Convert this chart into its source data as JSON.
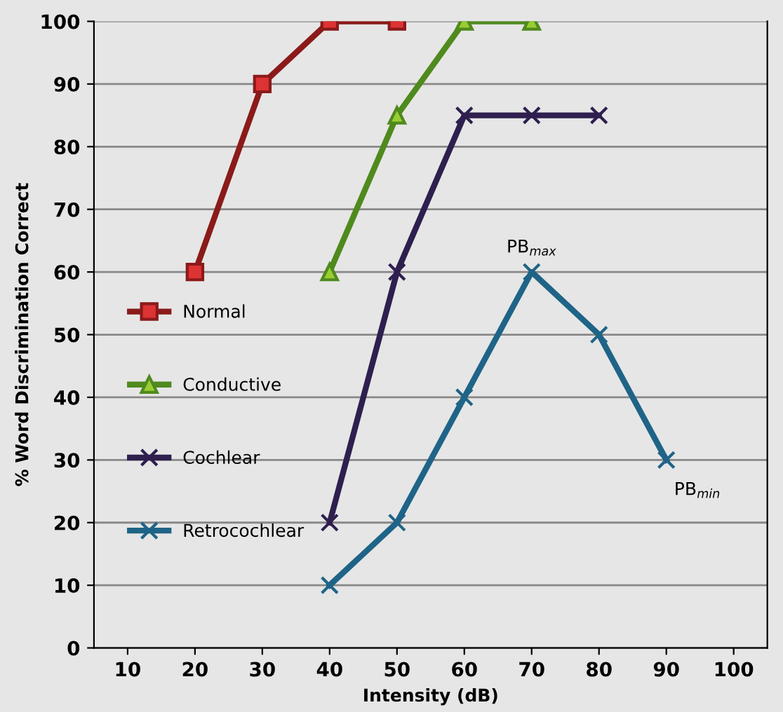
{
  "chart_data": {
    "type": "line",
    "xlabel": "Intensity (dB)",
    "ylabel": "% Word Discrimination Correct",
    "xlim": [
      5,
      105
    ],
    "xticks": [
      10,
      20,
      30,
      40,
      50,
      60,
      70,
      80,
      90,
      100
    ],
    "ylim": [
      0,
      100
    ],
    "yticks": [
      0,
      10,
      20,
      30,
      40,
      50,
      60,
      70,
      80,
      90,
      100
    ],
    "grid": "y",
    "legend": "left",
    "line_style": "solid",
    "series": [
      {
        "name": "Normal",
        "color": "#8b1a1a",
        "marker": "square",
        "x": [
          20,
          30,
          40,
          50
        ],
        "values": [
          60,
          90,
          100,
          100
        ]
      },
      {
        "name": "Conductive",
        "color": "#4f8a1e",
        "marker": "triangle",
        "x": [
          40,
          50,
          60,
          70
        ],
        "values": [
          60,
          85,
          100,
          100
        ]
      },
      {
        "name": "Cochlear",
        "color": "#2e1f4f",
        "marker": "cross",
        "x": [
          40,
          50,
          60,
          70,
          80
        ],
        "values": [
          20,
          60,
          85,
          85,
          85
        ]
      },
      {
        "name": "Retrocochlear",
        "color": "#1f6487",
        "marker": "cross",
        "x": [
          40,
          50,
          60,
          70,
          80,
          90
        ],
        "values": [
          10,
          20,
          40,
          60,
          50,
          30
        ]
      }
    ],
    "annotations": [
      {
        "text": "PB$_{max}$",
        "x": 70,
        "y": 60
      },
      {
        "text": "PB$_{min}$",
        "x": 90,
        "y": 30
      }
    ]
  }
}
